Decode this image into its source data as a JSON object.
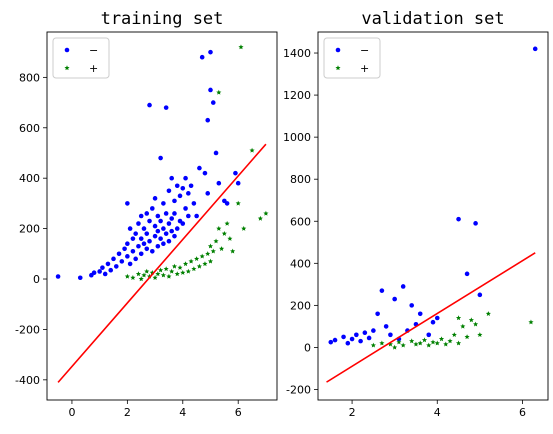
{
  "chart_data": [
    {
      "type": "scatter",
      "title": "training set",
      "xlim": [
        -0.9,
        7.4
      ],
      "ylim": [
        -480,
        980
      ],
      "xticks": [
        0,
        2,
        4,
        6
      ],
      "yticks": [
        -400,
        -200,
        0,
        200,
        400,
        600,
        800
      ],
      "legend": {
        "placement": "top-left",
        "entries": [
          {
            "label": "−",
            "color": "#0000ff",
            "marker": "dot"
          },
          {
            "label": "+",
            "color": "#008000",
            "marker": "star"
          }
        ]
      },
      "series": [
        {
          "label": "−",
          "color": "#0000ff",
          "marker": "dot",
          "points": [
            [
              -0.5,
              10
            ],
            [
              0.3,
              5
            ],
            [
              0.7,
              15
            ],
            [
              0.8,
              25
            ],
            [
              1.0,
              30
            ],
            [
              1.1,
              45
            ],
            [
              1.2,
              20
            ],
            [
              1.3,
              60
            ],
            [
              1.4,
              35
            ],
            [
              1.5,
              80
            ],
            [
              1.6,
              50
            ],
            [
              1.7,
              100
            ],
            [
              1.8,
              70
            ],
            [
              1.9,
              120
            ],
            [
              2.0,
              90
            ],
            [
              2.0,
              140
            ],
            [
              2.0,
              300
            ],
            [
              2.1,
              60
            ],
            [
              2.1,
              200
            ],
            [
              2.2,
              110
            ],
            [
              2.2,
              160
            ],
            [
              2.3,
              80
            ],
            [
              2.3,
              180
            ],
            [
              2.4,
              130
            ],
            [
              2.4,
              220
            ],
            [
              2.5,
              100
            ],
            [
              2.5,
              250
            ],
            [
              2.5,
              160
            ],
            [
              2.6,
              140
            ],
            [
              2.6,
              200
            ],
            [
              2.7,
              120
            ],
            [
              2.7,
              180
            ],
            [
              2.7,
              260
            ],
            [
              2.8,
              690
            ],
            [
              2.8,
              150
            ],
            [
              2.8,
              230
            ],
            [
              2.9,
              110
            ],
            [
              2.9,
              280
            ],
            [
              3.0,
              170
            ],
            [
              3.0,
              210
            ],
            [
              3.0,
              320
            ],
            [
              3.1,
              130
            ],
            [
              3.1,
              190
            ],
            [
              3.1,
              250
            ],
            [
              3.2,
              160
            ],
            [
              3.2,
              230
            ],
            [
              3.2,
              480
            ],
            [
              3.3,
              140
            ],
            [
              3.3,
              200
            ],
            [
              3.3,
              300
            ],
            [
              3.4,
              680
            ],
            [
              3.4,
              180
            ],
            [
              3.4,
              260
            ],
            [
              3.5,
              150
            ],
            [
              3.5,
              220
            ],
            [
              3.5,
              350
            ],
            [
              3.6,
              190
            ],
            [
              3.6,
              240
            ],
            [
              3.6,
              400
            ],
            [
              3.7,
              170
            ],
            [
              3.7,
              260
            ],
            [
              3.7,
              310
            ],
            [
              3.8,
              200
            ],
            [
              3.8,
              370
            ],
            [
              3.9,
              230
            ],
            [
              3.9,
              330
            ],
            [
              4.0,
              220
            ],
            [
              4.0,
              360
            ],
            [
              4.1,
              280
            ],
            [
              4.1,
              400
            ],
            [
              4.2,
              250
            ],
            [
              4.2,
              340
            ],
            [
              4.3,
              370
            ],
            [
              4.4,
              300
            ],
            [
              4.5,
              250
            ],
            [
              4.6,
              440
            ],
            [
              4.7,
              880
            ],
            [
              4.8,
              420
            ],
            [
              4.9,
              630
            ],
            [
              4.9,
              340
            ],
            [
              5.0,
              900
            ],
            [
              5.0,
              750
            ],
            [
              5.1,
              700
            ],
            [
              5.2,
              500
            ],
            [
              5.3,
              380
            ],
            [
              5.5,
              310
            ],
            [
              5.6,
              300
            ],
            [
              5.9,
              420
            ],
            [
              6.0,
              380
            ]
          ]
        },
        {
          "label": "+",
          "color": "#008000",
          "marker": "star",
          "points": [
            [
              2.0,
              10
            ],
            [
              2.2,
              5
            ],
            [
              2.4,
              20
            ],
            [
              2.5,
              0
            ],
            [
              2.6,
              15
            ],
            [
              2.7,
              30
            ],
            [
              2.8,
              10
            ],
            [
              2.9,
              25
            ],
            [
              3.0,
              5
            ],
            [
              3.1,
              20
            ],
            [
              3.2,
              35
            ],
            [
              3.3,
              15
            ],
            [
              3.4,
              40
            ],
            [
              3.5,
              10
            ],
            [
              3.6,
              30
            ],
            [
              3.7,
              50
            ],
            [
              3.8,
              20
            ],
            [
              3.9,
              45
            ],
            [
              4.0,
              25
            ],
            [
              4.1,
              60
            ],
            [
              4.2,
              30
            ],
            [
              4.3,
              70
            ],
            [
              4.4,
              40
            ],
            [
              4.5,
              80
            ],
            [
              4.6,
              50
            ],
            [
              4.7,
              90
            ],
            [
              4.8,
              60
            ],
            [
              4.9,
              100
            ],
            [
              5.0,
              70
            ],
            [
              5.0,
              130
            ],
            [
              5.1,
              110
            ],
            [
              5.2,
              150
            ],
            [
              5.3,
              200
            ],
            [
              5.3,
              740
            ],
            [
              5.4,
              120
            ],
            [
              5.5,
              180
            ],
            [
              5.6,
              220
            ],
            [
              5.7,
              160
            ],
            [
              5.8,
              110
            ],
            [
              6.0,
              300
            ],
            [
              6.1,
              920
            ],
            [
              6.2,
              200
            ],
            [
              6.5,
              510
            ],
            [
              6.8,
              240
            ],
            [
              7.0,
              260
            ]
          ]
        }
      ],
      "fit_line": {
        "color": "#ff0000",
        "x": [
          -0.5,
          7.0
        ],
        "y": [
          -410,
          535
        ]
      }
    },
    {
      "type": "scatter",
      "title": "validation set",
      "xlim": [
        1.2,
        6.6
      ],
      "ylim": [
        -250,
        1500
      ],
      "xticks": [
        2,
        4,
        6
      ],
      "yticks": [
        -200,
        0,
        200,
        400,
        600,
        800,
        1000,
        1200,
        1400
      ],
      "legend": {
        "placement": "top-left",
        "entries": [
          {
            "label": "−",
            "color": "#0000ff",
            "marker": "dot"
          },
          {
            "label": "+",
            "color": "#008000",
            "marker": "star"
          }
        ]
      },
      "series": [
        {
          "label": "−",
          "color": "#0000ff",
          "marker": "dot",
          "points": [
            [
              1.5,
              25
            ],
            [
              1.6,
              35
            ],
            [
              1.8,
              50
            ],
            [
              1.9,
              20
            ],
            [
              2.0,
              40
            ],
            [
              2.1,
              60
            ],
            [
              2.2,
              30
            ],
            [
              2.3,
              70
            ],
            [
              2.4,
              45
            ],
            [
              2.5,
              80
            ],
            [
              2.6,
              160
            ],
            [
              2.7,
              270
            ],
            [
              2.8,
              100
            ],
            [
              2.9,
              60
            ],
            [
              3.0,
              230
            ],
            [
              3.1,
              40
            ],
            [
              3.2,
              290
            ],
            [
              3.3,
              80
            ],
            [
              3.4,
              200
            ],
            [
              3.5,
              110
            ],
            [
              3.6,
              160
            ],
            [
              3.8,
              60
            ],
            [
              3.9,
              120
            ],
            [
              4.0,
              140
            ],
            [
              4.5,
              610
            ],
            [
              4.7,
              350
            ],
            [
              4.9,
              590
            ],
            [
              5.0,
              250
            ],
            [
              6.3,
              1420
            ]
          ]
        },
        {
          "label": "+",
          "color": "#008000",
          "marker": "star",
          "points": [
            [
              2.5,
              10
            ],
            [
              2.7,
              20
            ],
            [
              2.9,
              15
            ],
            [
              3.0,
              0
            ],
            [
              3.1,
              25
            ],
            [
              3.2,
              10
            ],
            [
              3.4,
              30
            ],
            [
              3.5,
              15
            ],
            [
              3.6,
              20
            ],
            [
              3.7,
              35
            ],
            [
              3.8,
              10
            ],
            [
              3.9,
              25
            ],
            [
              4.0,
              20
            ],
            [
              4.1,
              40
            ],
            [
              4.2,
              15
            ],
            [
              4.3,
              30
            ],
            [
              4.4,
              60
            ],
            [
              4.5,
              20
            ],
            [
              4.5,
              140
            ],
            [
              4.6,
              100
            ],
            [
              4.7,
              50
            ],
            [
              4.8,
              130
            ],
            [
              4.9,
              110
            ],
            [
              5.0,
              60
            ],
            [
              5.2,
              160
            ],
            [
              6.2,
              120
            ]
          ]
        }
      ],
      "fit_line": {
        "color": "#ff0000",
        "x": [
          1.4,
          6.3
        ],
        "y": [
          -165,
          450
        ]
      }
    }
  ]
}
